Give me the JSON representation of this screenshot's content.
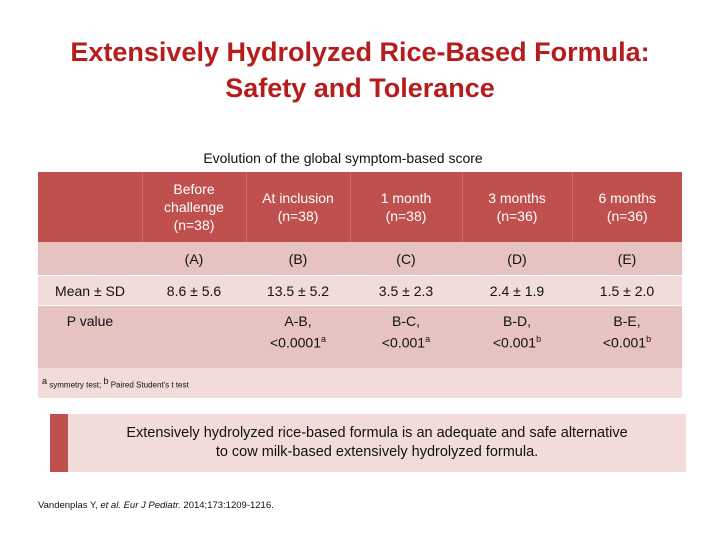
{
  "title_line1": "Extensively Hydrolyzed Rice-Based Formula:",
  "title_line2": "Safety and Tolerance",
  "caption": "Evolution of the global symptom-based score",
  "table": {
    "headers": [
      {
        "line1": "",
        "line2": "",
        "line3": ""
      },
      {
        "line1": "Before",
        "line2": "challenge",
        "line3": "(n=38)"
      },
      {
        "line1": "At inclusion",
        "line2": "(n=38)",
        "line3": ""
      },
      {
        "line1": "1 month",
        "line2": "(n=38)",
        "line3": ""
      },
      {
        "line1": "3 months",
        "line2": "(n=36)",
        "line3": ""
      },
      {
        "line1": "6 months",
        "line2": "(n=36)",
        "line3": ""
      }
    ],
    "letters": [
      "",
      "(A)",
      "(B)",
      "(C)",
      "(D)",
      "(E)"
    ],
    "mean_row": {
      "label": "Mean ± SD",
      "values": [
        "8.6 ±  5.6",
        "13.5 ± 5.2",
        "3.5 ± 2.3",
        "2.4 ± 1.9",
        "1.5 ± 2.0"
      ]
    },
    "p_row": {
      "label": "P value",
      "values": [
        {
          "line1": "",
          "line2": "",
          "sup": ""
        },
        {
          "line1": "A-B,",
          "line2": "<0.0001",
          "sup": "a"
        },
        {
          "line1": "B-C,",
          "line2": "<0.001",
          "sup": "a"
        },
        {
          "line1": "B-D,",
          "line2": "<0.001",
          "sup": "b"
        },
        {
          "line1": "B-E,",
          "line2": "<0.001",
          "sup": "b"
        }
      ]
    },
    "footnote": {
      "sup_a": "a",
      "text_a": " symmetry test; ",
      "sup_b": "b",
      "text_b": " Paired Student's t test"
    }
  },
  "banner_line1": "Extensively hydrolyzed rice-based formula is an adequate and safe alternative",
  "banner_line2": "to cow milk-based extensively hydrolyzed formula.",
  "reference": {
    "authors": "Vandenplas Y, ",
    "etal": "et al. Eur J Pediatr.",
    "rest": " 2014;173:1209-1216."
  }
}
